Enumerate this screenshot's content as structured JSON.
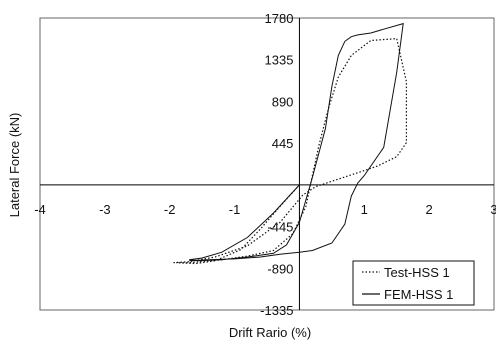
{
  "chart_data": {
    "type": "line",
    "title": "",
    "xlabel": "Drift Rario (%)",
    "ylabel": "Lateral Force (kN)",
    "xlim": [
      -4,
      3
    ],
    "ylim": [
      -1335,
      1780
    ],
    "x_ticks": [
      -4,
      -3,
      -2,
      -1,
      1,
      2,
      3
    ],
    "x_tick_labels": [
      "-4",
      "-3",
      "-2",
      "-1",
      "1",
      "2",
      "3"
    ],
    "y_ticks": [
      1780,
      1335,
      890,
      445,
      -445,
      -890,
      -1335
    ],
    "y_tick_labels": [
      "1780",
      "1335",
      "890",
      "445",
      "-445",
      "-890",
      "-1335"
    ],
    "grid": false,
    "legend_position": "bottom-right",
    "series": [
      {
        "name": "Test-HSS 1",
        "style": "dotted",
        "x": [
          0,
          -0.3,
          -0.6,
          -0.9,
          -1.3,
          -1.6,
          -1.9,
          -1.7,
          -1.2,
          -0.8,
          -0.4,
          -0.1,
          0.1,
          0.2,
          0.3,
          0.45,
          0.6,
          0.8,
          1.1,
          1.5,
          1.65,
          1.65,
          1.5,
          1.2,
          0.9,
          0.55,
          0.25,
          0.05,
          -0.3,
          -0.8,
          -1.3,
          -1.7,
          -1.95
        ],
        "y": [
          0,
          -230,
          -470,
          -690,
          -810,
          -840,
          -830,
          -830,
          -800,
          -760,
          -700,
          -520,
          -230,
          100,
          420,
          820,
          1150,
          1380,
          1540,
          1560,
          1100,
          450,
          300,
          200,
          130,
          50,
          -20,
          -110,
          -400,
          -650,
          -770,
          -820,
          -830
        ]
      },
      {
        "name": "FEM-HSS 1",
        "style": "solid",
        "x": [
          0,
          -0.4,
          -0.8,
          -1.2,
          -1.5,
          -1.7,
          -1.55,
          -1.2,
          -0.8,
          -0.4,
          -0.2,
          0.0,
          0.2,
          0.4,
          0.5,
          0.6,
          0.7,
          0.8,
          0.9,
          1.1,
          1.3,
          1.6,
          1.5,
          1.3,
          1.0,
          0.9,
          0.8,
          0.7,
          0.5,
          0.2,
          0.0,
          -0.3,
          -0.6,
          -1.0,
          -1.4,
          -1.7
        ],
        "y": [
          0,
          -300,
          -560,
          -720,
          -780,
          -800,
          -810,
          -800,
          -770,
          -730,
          -640,
          -400,
          80,
          600,
          1050,
          1380,
          1530,
          1580,
          1600,
          1620,
          1660,
          1720,
          1200,
          400,
          100,
          20,
          -120,
          -420,
          -620,
          -700,
          -720,
          -740,
          -770,
          -790,
          -800,
          -810
        ]
      }
    ]
  },
  "legend": {
    "entries": [
      {
        "label": "Test-HSS 1",
        "style": "dotted"
      },
      {
        "label": "FEM-HSS 1",
        "style": "solid"
      }
    ]
  },
  "colors": {
    "line": "#111111",
    "axis": "#000000",
    "background": "#ffffff"
  }
}
